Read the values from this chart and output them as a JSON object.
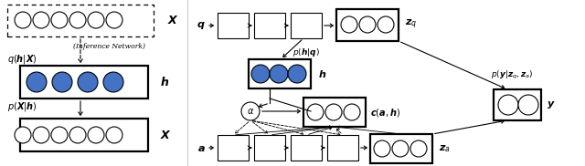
{
  "bg_color": "#ffffff",
  "blue_fill": "#4472c4",
  "white_fill": "#ffffff",
  "black": "#000000",
  "fig_w": 6.4,
  "fig_h": 1.82,
  "dpi": 100
}
